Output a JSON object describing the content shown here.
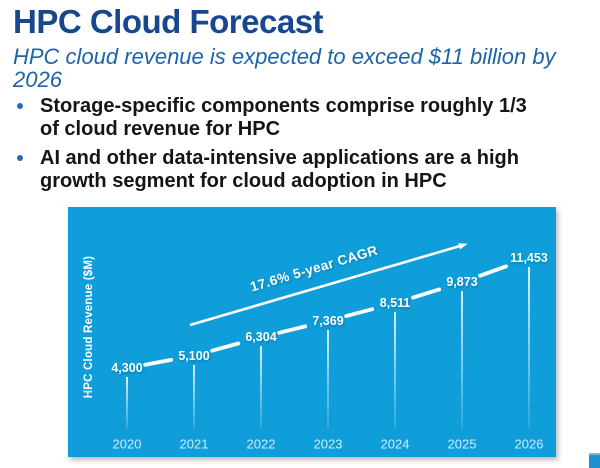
{
  "slide": {
    "title": "HPC Cloud Forecast",
    "subtitle_lines": [
      "HPC cloud revenue is expected to exceed $11 billion by",
      "2026"
    ],
    "bullets": [
      {
        "lines": [
          "Storage-specific components comprise roughly 1/3",
          "of cloud revenue for HPC"
        ]
      },
      {
        "lines": [
          "AI and other data-intensive applications are a high",
          "growth segment for cloud adoption in HPC"
        ]
      }
    ],
    "colors": {
      "title_text": "#17478f",
      "subtitle_text": "#1e63a8",
      "bullet_dot": "#2a6cb0",
      "chart_background": "#0f9ed9",
      "chart_text": "#ffffff",
      "year_text": "#cfeaf8",
      "corner_square": "#1e8fcd"
    }
  },
  "chart_data": {
    "type": "line",
    "title": "",
    "xlabel": "",
    "ylabel": "HPC Cloud Revenue ($M)",
    "categories": [
      "2020",
      "2021",
      "2022",
      "2023",
      "2024",
      "2025",
      "2026"
    ],
    "values": [
      4300,
      5100,
      6304,
      7369,
      8511,
      9873,
      11453
    ],
    "labels": [
      "4,300",
      "5,100",
      "6,304",
      "7,369",
      "8,511",
      "9,873",
      "11,453"
    ],
    "annotation": "17.6% 5-year CAGR",
    "line_style": "dashed-segments-with-drop-lines",
    "legend": "none",
    "grid": false,
    "ylim": [
      4000,
      12000
    ]
  }
}
